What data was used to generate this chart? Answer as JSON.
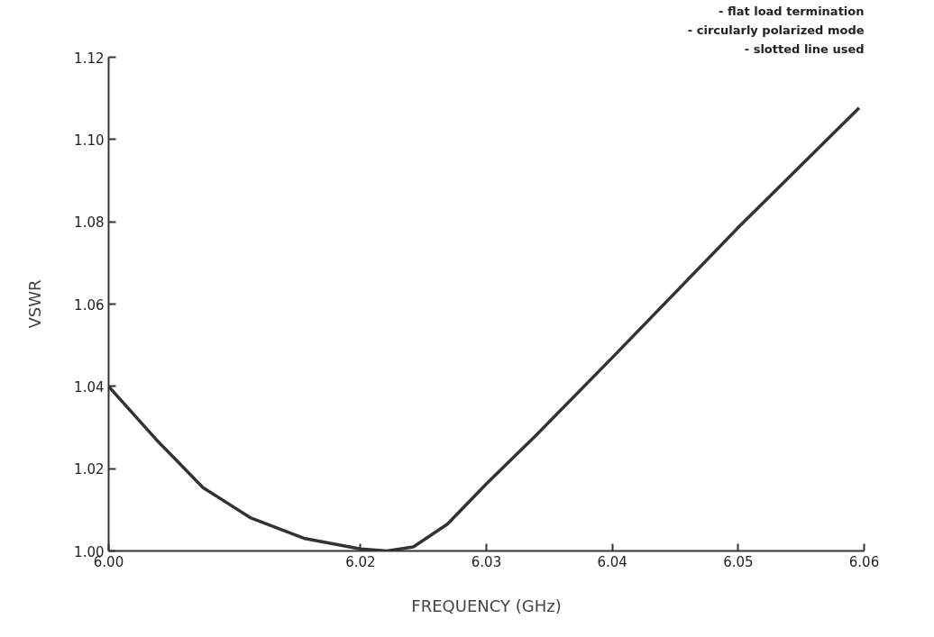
{
  "chart_data": {
    "type": "line",
    "xlabel": "FREQUENCY (GHz)",
    "ylabel": "VSWR",
    "annotations": [
      "- flat load termination",
      "- circularly polarized mode",
      "- slotted line used"
    ],
    "x": [
      6.0,
      6.0038,
      6.0075,
      6.0113,
      6.0156,
      6.02,
      6.0221,
      6.0242,
      6.0269,
      6.03,
      6.0339,
      6.04,
      6.05,
      6.0596
    ],
    "series": [
      {
        "color": "#333333",
        "values": [
          1.04,
          1.027,
          1.0154,
          1.008,
          1.003,
          1.0005,
          1.0,
          1.001,
          1.0065,
          1.0163,
          1.028,
          1.047,
          1.0786,
          1.1077
        ]
      }
    ],
    "xlim": [
      6.0,
      6.06
    ],
    "ylim": [
      1.0,
      1.12
    ],
    "xticks": [
      {
        "value": 6.0,
        "label": "6.00"
      },
      6.02,
      6.03,
      6.04,
      6.05,
      6.06
    ],
    "yticks": [
      {
        "value": 1.0,
        "label": "1.00"
      },
      1.02,
      1.04,
      1.06,
      1.08,
      {
        "value": 1.1,
        "label": "1.10"
      },
      1.12
    ],
    "grid": false,
    "marker": "none",
    "line_style": "solid"
  }
}
